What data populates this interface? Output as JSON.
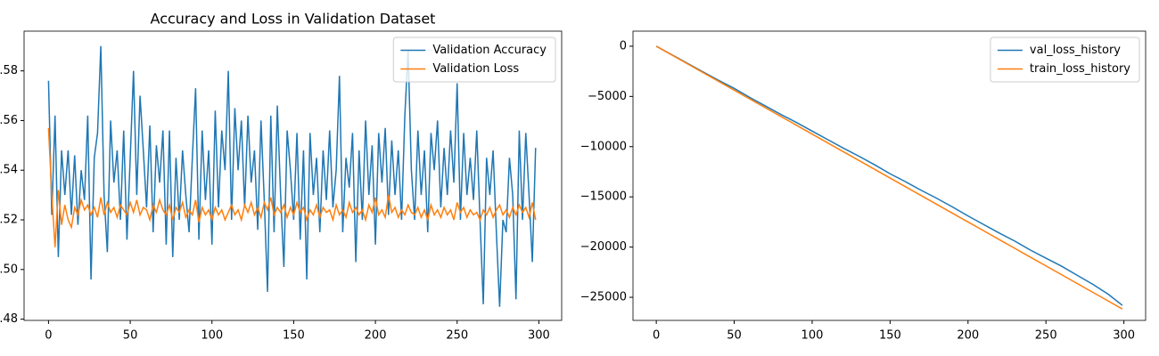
{
  "chart_data": [
    {
      "type": "line",
      "title": "Accuracy and Loss in Validation Dataset",
      "x": [
        0,
        2,
        4,
        6,
        8,
        10,
        12,
        14,
        16,
        18,
        20,
        22,
        24,
        26,
        28,
        30,
        32,
        34,
        36,
        38,
        40,
        42,
        44,
        46,
        48,
        50,
        52,
        54,
        56,
        58,
        60,
        62,
        64,
        66,
        68,
        70,
        72,
        74,
        76,
        78,
        80,
        82,
        84,
        86,
        88,
        90,
        92,
        94,
        96,
        98,
        100,
        102,
        104,
        106,
        108,
        110,
        112,
        114,
        116,
        118,
        120,
        122,
        124,
        126,
        128,
        130,
        132,
        134,
        136,
        138,
        140,
        142,
        144,
        146,
        148,
        150,
        152,
        154,
        156,
        158,
        160,
        162,
        164,
        166,
        168,
        170,
        172,
        174,
        176,
        178,
        180,
        182,
        184,
        186,
        188,
        190,
        192,
        194,
        196,
        198,
        200,
        202,
        204,
        206,
        208,
        210,
        212,
        214,
        216,
        218,
        220,
        222,
        224,
        226,
        228,
        230,
        232,
        234,
        236,
        238,
        240,
        242,
        244,
        246,
        248,
        250,
        252,
        254,
        256,
        258,
        260,
        262,
        264,
        266,
        268,
        270,
        272,
        274,
        276,
        278,
        280,
        282,
        284,
        286,
        288,
        290,
        292,
        294,
        296,
        298
      ],
      "series": [
        {
          "name": "Validation Accuracy",
          "color": "#1f77b4",
          "values": [
            0.576,
            0.522,
            0.562,
            0.505,
            0.548,
            0.53,
            0.548,
            0.522,
            0.546,
            0.518,
            0.54,
            0.528,
            0.562,
            0.496,
            0.545,
            0.555,
            0.59,
            0.53,
            0.507,
            0.56,
            0.535,
            0.548,
            0.52,
            0.556,
            0.512,
            0.545,
            0.58,
            0.53,
            0.57,
            0.548,
            0.525,
            0.558,
            0.515,
            0.55,
            0.535,
            0.556,
            0.51,
            0.556,
            0.505,
            0.545,
            0.52,
            0.548,
            0.53,
            0.515,
            0.545,
            0.573,
            0.512,
            0.556,
            0.528,
            0.548,
            0.51,
            0.564,
            0.525,
            0.556,
            0.54,
            0.58,
            0.52,
            0.565,
            0.54,
            0.56,
            0.525,
            0.562,
            0.535,
            0.548,
            0.516,
            0.56,
            0.528,
            0.491,
            0.562,
            0.515,
            0.566,
            0.53,
            0.501,
            0.556,
            0.54,
            0.52,
            0.555,
            0.512,
            0.548,
            0.496,
            0.555,
            0.53,
            0.545,
            0.515,
            0.548,
            0.528,
            0.556,
            0.525,
            0.54,
            0.578,
            0.515,
            0.545,
            0.533,
            0.555,
            0.503,
            0.548,
            0.52,
            0.56,
            0.53,
            0.55,
            0.51,
            0.555,
            0.535,
            0.557,
            0.522,
            0.552,
            0.53,
            0.548,
            0.52,
            0.562,
            0.588,
            0.54,
            0.52,
            0.556,
            0.53,
            0.548,
            0.515,
            0.555,
            0.54,
            0.56,
            0.525,
            0.549,
            0.53,
            0.556,
            0.535,
            0.575,
            0.52,
            0.555,
            0.53,
            0.545,
            0.528,
            0.556,
            0.52,
            0.486,
            0.545,
            0.53,
            0.548,
            0.515,
            0.485,
            0.52,
            0.515,
            0.545,
            0.53,
            0.488,
            0.556,
            0.52,
            0.555,
            0.53,
            0.503,
            0.549
          ]
        },
        {
          "name": "Validation Loss",
          "color": "#ff7f0e",
          "values": [
            0.557,
            0.53,
            0.509,
            0.532,
            0.518,
            0.526,
            0.52,
            0.517,
            0.525,
            0.522,
            0.528,
            0.524,
            0.526,
            0.522,
            0.525,
            0.521,
            0.529,
            0.522,
            0.527,
            0.523,
            0.525,
            0.521,
            0.526,
            0.524,
            0.522,
            0.527,
            0.523,
            0.528,
            0.522,
            0.525,
            0.524,
            0.52,
            0.526,
            0.523,
            0.528,
            0.524,
            0.522,
            0.526,
            0.52,
            0.525,
            0.523,
            0.527,
            0.521,
            0.524,
            0.522,
            0.528,
            0.519,
            0.525,
            0.522,
            0.524,
            0.52,
            0.525,
            0.522,
            0.524,
            0.52,
            0.523,
            0.526,
            0.522,
            0.524,
            0.52,
            0.526,
            0.523,
            0.527,
            0.522,
            0.525,
            0.521,
            0.527,
            0.524,
            0.529,
            0.522,
            0.525,
            0.523,
            0.526,
            0.521,
            0.525,
            0.522,
            0.527,
            0.523,
            0.525,
            0.52,
            0.524,
            0.522,
            0.526,
            0.521,
            0.525,
            0.523,
            0.524,
            0.52,
            0.526,
            0.522,
            0.524,
            0.521,
            0.527,
            0.523,
            0.525,
            0.522,
            0.524,
            0.52,
            0.526,
            0.523,
            0.529,
            0.522,
            0.524,
            0.521,
            0.53,
            0.523,
            0.525,
            0.521,
            0.524,
            0.522,
            0.526,
            0.523,
            0.522,
            0.525,
            0.521,
            0.524,
            0.52,
            0.526,
            0.522,
            0.524,
            0.521,
            0.525,
            0.522,
            0.524,
            0.52,
            0.527,
            0.523,
            0.525,
            0.521,
            0.524,
            0.522,
            0.523,
            0.52,
            0.524,
            0.522,
            0.525,
            0.521,
            0.524,
            0.526,
            0.522,
            0.524,
            0.521,
            0.525,
            0.522,
            0.526,
            0.523,
            0.525,
            0.521,
            0.527,
            0.52
          ]
        }
      ],
      "xlim": [
        -14.95,
        313.95
      ],
      "xticks": [
        0,
        50,
        100,
        150,
        200,
        250,
        300
      ],
      "ylim": [
        0.4795,
        0.596
      ],
      "yticks": [
        0.48,
        {
          "value": 0.5,
          "label": "0.50"
        },
        0.52,
        0.54,
        0.56,
        0.58
      ],
      "legend": "upper right"
    },
    {
      "type": "line",
      "x": [
        0,
        10,
        20,
        30,
        40,
        50,
        60,
        70,
        80,
        90,
        100,
        110,
        120,
        130,
        140,
        150,
        160,
        170,
        180,
        190,
        200,
        210,
        220,
        230,
        240,
        250,
        260,
        270,
        280,
        290,
        299
      ],
      "series": [
        {
          "name": "val_loss_history",
          "color": "#1f77b4",
          "values": [
            0,
            -850,
            -1700,
            -2560,
            -3400,
            -4200,
            -5100,
            -5950,
            -6800,
            -7600,
            -8450,
            -9300,
            -10150,
            -10950,
            -11800,
            -12700,
            -13500,
            -14350,
            -15150,
            -16000,
            -16900,
            -17750,
            -18600,
            -19400,
            -20300,
            -21100,
            -21900,
            -22800,
            -23700,
            -24700,
            -25800
          ]
        },
        {
          "name": "train_loss_history",
          "color": "#ff7f0e",
          "values": [
            0,
            -875,
            -1750,
            -2625,
            -3500,
            -4375,
            -5250,
            -6125,
            -7000,
            -7875,
            -8750,
            -9625,
            -10500,
            -11375,
            -12250,
            -13125,
            -14000,
            -14875,
            -15750,
            -16625,
            -17500,
            -18375,
            -19250,
            -20125,
            -21000,
            -21875,
            -22750,
            -23625,
            -24500,
            -25375,
            -26163
          ]
        }
      ],
      "xlim": [
        -14.95,
        313.95
      ],
      "xticks": [
        0,
        50,
        100,
        150,
        200,
        250,
        300
      ],
      "ylim": [
        -27300,
        1500
      ],
      "yticks": [
        {
          "value": -25000,
          "label": "−25000"
        },
        {
          "value": -20000,
          "label": "−20000"
        },
        {
          "value": -15000,
          "label": "−15000"
        },
        {
          "value": -10000,
          "label": "−10000"
        },
        {
          "value": -5000,
          "label": "−5000"
        },
        0
      ],
      "legend": "upper right"
    }
  ]
}
